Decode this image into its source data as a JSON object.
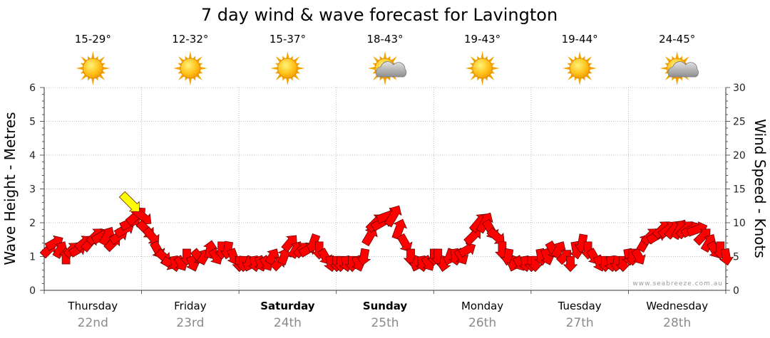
{
  "title": "7 day wind & wave forecast for Lavington",
  "credit": "www.seabreeze.com.au",
  "colors": {
    "wind_arrow": "#ff0000",
    "gust_arrow": "#ffff00",
    "grid": "#aaaaaa"
  },
  "days": [
    {
      "day": "Thursday",
      "date": "22nd",
      "temp": "15-29°",
      "icon": "sun-icon",
      "bold": false
    },
    {
      "day": "Friday",
      "date": "23rd",
      "temp": "12-32°",
      "icon": "sun-icon",
      "bold": false
    },
    {
      "day": "Saturday",
      "date": "24th",
      "temp": "15-37°",
      "icon": "sun-icon",
      "bold": true
    },
    {
      "day": "Sunday",
      "date": "25th",
      "temp": "18-43°",
      "icon": "partly-cloudy-icon",
      "bold": true
    },
    {
      "day": "Monday",
      "date": "26th",
      "temp": "19-43°",
      "icon": "sun-icon",
      "bold": false
    },
    {
      "day": "Tuesday",
      "date": "27th",
      "temp": "19-44°",
      "icon": "sun-icon",
      "bold": false
    },
    {
      "day": "Wednesday",
      "date": "28th",
      "temp": "24-45°",
      "icon": "partly-cloudy-icon",
      "bold": false
    }
  ],
  "chart_data": {
    "type": "scatter",
    "title": "7 day wind & wave forecast for Lavington",
    "ylabel": "Wave Height - Metres",
    "y2label": "Wind Speed - Knots",
    "ylim": [
      0,
      6
    ],
    "y2lim": [
      0,
      30
    ],
    "yticks": [
      "0",
      "1",
      "2",
      "3",
      "4",
      "5",
      "6"
    ],
    "y2ticks": [
      "0",
      "5",
      "10",
      "15",
      "20",
      "25",
      "30"
    ],
    "x_unit": "day_index",
    "grid": true,
    "series": [
      {
        "kind": "wind",
        "x": [
          0.0,
          0.06,
          0.12,
          0.18,
          0.24,
          0.3,
          0.36,
          0.42,
          0.48,
          0.54,
          0.6,
          0.66,
          0.72,
          0.78,
          0.84,
          0.9,
          0.96,
          1.0,
          1.06,
          1.12,
          1.18,
          1.24,
          1.3,
          1.36,
          1.42,
          1.48,
          1.54,
          1.6,
          1.66,
          1.72,
          1.78,
          1.84,
          1.9,
          1.96,
          2.0,
          2.06,
          2.12,
          2.18,
          2.24,
          2.3,
          2.36,
          2.42,
          2.48,
          2.54,
          2.6,
          2.66,
          2.72,
          2.78,
          2.84,
          2.9,
          2.96,
          3.0,
          3.06,
          3.12,
          3.18,
          3.24,
          3.3,
          3.36,
          3.42,
          3.48,
          3.54,
          3.6,
          3.66,
          3.72,
          3.78,
          3.84,
          3.9,
          3.96,
          4.0,
          4.06,
          4.12,
          4.18,
          4.24,
          4.3,
          4.36,
          4.42,
          4.48,
          4.54,
          4.6,
          4.66,
          4.72,
          4.78,
          4.84,
          4.9,
          4.96,
          5.0,
          5.06,
          5.12,
          5.18,
          5.24,
          5.3,
          5.36,
          5.42,
          5.48,
          5.54,
          5.6,
          5.66,
          5.72,
          5.78,
          5.84,
          5.9,
          5.96,
          6.0,
          6.06,
          6.12,
          6.18,
          6.24,
          6.3,
          6.36,
          6.42,
          6.48,
          6.54,
          6.6,
          6.66,
          6.72,
          6.78,
          6.84,
          6.9,
          6.96
        ],
        "speed": [
          6,
          7,
          6,
          5,
          6,
          6,
          7,
          7,
          8,
          8,
          8,
          7,
          8,
          9,
          10,
          11,
          11,
          9,
          8,
          6,
          5,
          4,
          4,
          4,
          5,
          4,
          5,
          5,
          6,
          5,
          6,
          6,
          5,
          4,
          4,
          4,
          4,
          4,
          4,
          5,
          4,
          5,
          7,
          6,
          6,
          6,
          7,
          6,
          5,
          4,
          4,
          4,
          4,
          4,
          4,
          5,
          8,
          10,
          10,
          11,
          11,
          9,
          7,
          5,
          4,
          4,
          4,
          5,
          5,
          4,
          5,
          5,
          5,
          6,
          8,
          10,
          10,
          9,
          8,
          6,
          5,
          4,
          4,
          4,
          4,
          4,
          5,
          5,
          6,
          6,
          5,
          4,
          6,
          7,
          6,
          5,
          4,
          4,
          4,
          4,
          4,
          5,
          5,
          5,
          7,
          8,
          8,
          9,
          9,
          9,
          9,
          9,
          9,
          9,
          8,
          7,
          6,
          6,
          5
        ],
        "dir_deg": [
          45,
          30,
          60,
          90,
          45,
          30,
          40,
          50,
          45,
          30,
          60,
          45,
          35,
          30,
          25,
          40,
          320,
          315,
          310,
          300,
          320,
          330,
          280,
          300,
          270,
          290,
          310,
          60,
          80,
          300,
          270,
          260,
          290,
          270,
          270,
          250,
          280,
          290,
          300,
          60,
          45,
          70,
          50,
          60,
          45,
          30,
          250,
          270,
          300,
          280,
          270,
          270,
          280,
          270,
          290,
          260,
          60,
          45,
          30,
          20,
          60,
          70,
          300,
          270,
          250,
          280,
          300,
          270,
          270,
          260,
          250,
          280,
          300,
          30,
          45,
          50,
          60,
          300,
          320,
          270,
          260,
          250,
          300,
          280,
          270,
          270,
          280,
          290,
          300,
          60,
          45,
          270,
          280,
          260,
          270,
          300,
          290,
          270,
          280,
          260,
          270,
          280,
          270,
          300,
          60,
          45,
          30,
          45,
          40,
          50,
          60,
          45,
          30,
          20,
          45,
          60,
          300,
          270,
          280
        ]
      },
      {
        "kind": "gust",
        "x": [
          0.84
        ],
        "speed": [
          13
        ],
        "dir_deg": [
          315
        ]
      }
    ]
  }
}
